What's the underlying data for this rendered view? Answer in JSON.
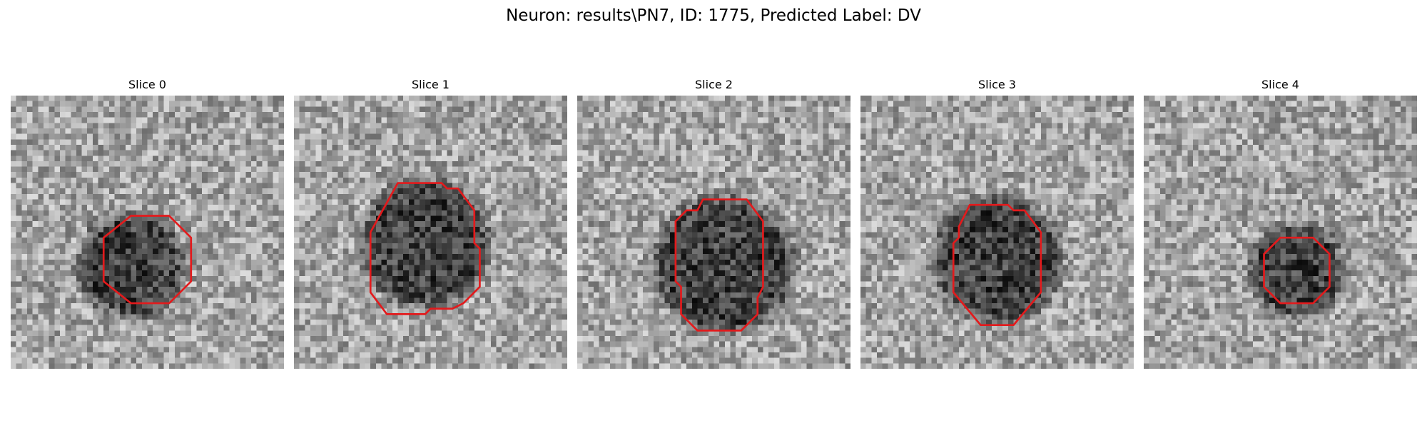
{
  "figure": {
    "title": "Neuron: results\\PN7, ID: 1775, Predicted Label: DV",
    "contour_color": "#e31a1c",
    "colormap": "gray"
  },
  "slices": [
    {
      "label": "Slice 0",
      "contour": [
        [
          22,
          22
        ],
        [
          29,
          22
        ],
        [
          33,
          26
        ],
        [
          33,
          34
        ],
        [
          29,
          38
        ],
        [
          22,
          38
        ],
        [
          17,
          34
        ],
        [
          17,
          26
        ]
      ],
      "dark_center": [
        22,
        31
      ],
      "dark_radius": 8
    },
    {
      "label": "Slice 1",
      "contour": [
        [
          19,
          16
        ],
        [
          27,
          16
        ],
        [
          28,
          17
        ],
        [
          30,
          17
        ],
        [
          33,
          21
        ],
        [
          33,
          27
        ],
        [
          34,
          28
        ],
        [
          34,
          35
        ],
        [
          31,
          38
        ],
        [
          29,
          39
        ],
        [
          25,
          39
        ],
        [
          24,
          40
        ],
        [
          17,
          40
        ],
        [
          14,
          36
        ],
        [
          14,
          25
        ]
      ],
      "dark_center": [
        24,
        27
      ],
      "dark_radius": 10
    },
    {
      "label": "Slice 2",
      "contour": [
        [
          23,
          19
        ],
        [
          31,
          19
        ],
        [
          34,
          23
        ],
        [
          34,
          35
        ],
        [
          33,
          37
        ],
        [
          33,
          40
        ],
        [
          30,
          43
        ],
        [
          22,
          43
        ],
        [
          19,
          40
        ],
        [
          19,
          35
        ],
        [
          18,
          34
        ],
        [
          18,
          23
        ],
        [
          20,
          21
        ],
        [
          22,
          21
        ]
      ],
      "dark_center": [
        27,
        31
      ],
      "dark_radius": 11
    },
    {
      "label": "Slice 3",
      "contour": [
        [
          20,
          20
        ],
        [
          27,
          20
        ],
        [
          28,
          21
        ],
        [
          30,
          21
        ],
        [
          33,
          25
        ],
        [
          33,
          36
        ],
        [
          28,
          42
        ],
        [
          22,
          42
        ],
        [
          17,
          36
        ],
        [
          17,
          27
        ],
        [
          18,
          26
        ],
        [
          18,
          24
        ]
      ],
      "dark_center": [
        25,
        30
      ],
      "dark_radius": 10
    },
    {
      "label": "Slice 4",
      "contour": [
        [
          25,
          26
        ],
        [
          31,
          26
        ],
        [
          34,
          29
        ],
        [
          34,
          35
        ],
        [
          31,
          38
        ],
        [
          25,
          38
        ],
        [
          22,
          35
        ],
        [
          22,
          29
        ]
      ],
      "dark_center": [
        28,
        32
      ],
      "dark_radius": 7
    }
  ]
}
